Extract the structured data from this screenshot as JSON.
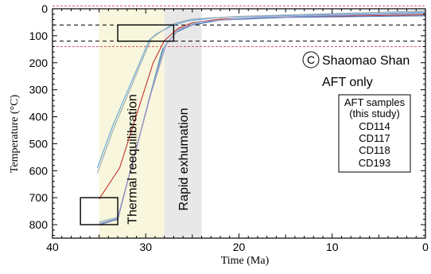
{
  "chart_data": {
    "type": "line",
    "xlabel": "Time (Ma)",
    "ylabel": "Temperature (°C)",
    "xlim": [
      40,
      0
    ],
    "ylim": [
      0,
      850
    ],
    "x_ticks": [
      40,
      30,
      20,
      10,
      0
    ],
    "y_ticks": [
      0,
      100,
      200,
      300,
      400,
      500,
      600,
      700,
      800
    ],
    "panel_letter": "C",
    "location": "Shaomao Shan",
    "subtitle": "AFT only",
    "legend": {
      "title_line1": "AFT samples",
      "title_line2": "(this study)",
      "entries": [
        "CD114",
        "CD117",
        "CD118",
        "CD193"
      ]
    },
    "shaded_intervals": [
      {
        "label": "Thermal reequilibration",
        "from": 35,
        "to": 28,
        "color": "#f8f6dc"
      },
      {
        "label": "Rapid exhumation",
        "from": 28,
        "to": 24,
        "color": "#e8e8e8"
      }
    ],
    "reference_lines": {
      "black_dashed_temps": [
        60,
        120
      ],
      "red_dashed_temps": [
        -10,
        140
      ]
    },
    "constraint_boxes": [
      {
        "x1": 33,
        "x2": 27,
        "y1": 60,
        "y2": 120
      },
      {
        "x1": 37,
        "x2": 33,
        "y1": 700,
        "y2": 800
      }
    ],
    "series": [
      {
        "color": "#5fa8d8",
        "values": [
          [
            35.2,
            590
          ],
          [
            33.5,
            430
          ],
          [
            29.6,
            115
          ],
          [
            28.8,
            92
          ],
          [
            27.0,
            60
          ],
          [
            25.5,
            45
          ],
          [
            22.0,
            32
          ],
          [
            15.0,
            25
          ],
          [
            5.0,
            18
          ],
          [
            0.0,
            12
          ]
        ]
      },
      {
        "color": "#9aa7b3",
        "values": [
          [
            35.2,
            610
          ],
          [
            33.4,
            440
          ],
          [
            29.4,
            110
          ],
          [
            28.6,
            90
          ],
          [
            27.0,
            55
          ],
          [
            25.0,
            38
          ],
          [
            20.0,
            28
          ],
          [
            10.0,
            18
          ],
          [
            0.0,
            8
          ]
        ]
      },
      {
        "color": "#c0322d",
        "values": [
          [
            35.0,
            705
          ],
          [
            32.8,
            590
          ],
          [
            29.2,
            200
          ],
          [
            28.0,
            118
          ],
          [
            26.5,
            72
          ],
          [
            25.0,
            52
          ],
          [
            22.0,
            38
          ],
          [
            15.0,
            30
          ],
          [
            5.0,
            25
          ],
          [
            0.0,
            22
          ]
        ]
      },
      {
        "color": "#3a6fb5",
        "values": [
          [
            35.0,
            800
          ],
          [
            33.0,
            780
          ],
          [
            29.6,
            330
          ],
          [
            28.2,
            150
          ],
          [
            26.8,
            88
          ],
          [
            25.0,
            60
          ],
          [
            22.0,
            42
          ],
          [
            15.0,
            32
          ],
          [
            5.0,
            28
          ],
          [
            0.0,
            26
          ]
        ]
      },
      {
        "color": "#7fc8c0",
        "values": [
          [
            35.0,
            790
          ],
          [
            33.0,
            772
          ],
          [
            29.5,
            320
          ],
          [
            28.0,
            140
          ],
          [
            26.6,
            80
          ],
          [
            24.5,
            50
          ],
          [
            20.0,
            35
          ],
          [
            10.0,
            25
          ],
          [
            0.0,
            18
          ]
        ]
      },
      {
        "color": "#a58bc7",
        "values": [
          [
            35.0,
            795
          ],
          [
            33.0,
            776
          ],
          [
            29.4,
            310
          ],
          [
            27.8,
            132
          ],
          [
            26.4,
            75
          ],
          [
            24.0,
            48
          ],
          [
            18.0,
            32
          ],
          [
            8.0,
            24
          ],
          [
            0.0,
            16
          ]
        ]
      }
    ]
  }
}
